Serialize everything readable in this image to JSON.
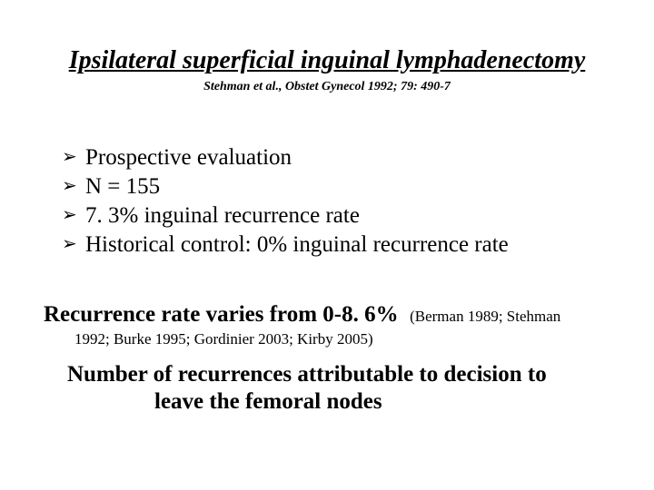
{
  "title": "Ipsilateral superficial inguinal lymphadenectomy",
  "title_citation": "Stehman et al., Obstet Gynecol 1992; 79: 490-7",
  "bullets": [
    "Prospective evaluation",
    "N = 155",
    "7. 3% inguinal recurrence rate",
    "Historical control: 0% inguinal recurrence rate"
  ],
  "bullet_symbol": "➢",
  "recurrence": {
    "main": "Recurrence rate varies from 0-8. 6%",
    "cite_inline": "(Berman 1989; Stehman",
    "cite_line2": "1992; Burke 1995; Gordinier 2003; Kirby 2005)"
  },
  "conclusion": {
    "line1": "Number of recurrences attributable to decision to",
    "line2": "leave the femoral nodes"
  },
  "style": {
    "background_color": "#ffffff",
    "text_color": "#000000",
    "title_fontsize": 28,
    "body_fontsize": 25,
    "small_fontsize": 17,
    "citation_fontsize": 14,
    "font_family": "Times New Roman"
  }
}
